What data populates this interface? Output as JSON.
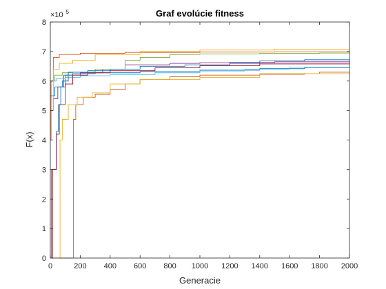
{
  "chart_data": {
    "type": "line",
    "title": "Graf evolúcie fitness",
    "xlabel": "Generacie",
    "ylabel": "F(x)",
    "xlim": [
      0,
      2000
    ],
    "ylim": [
      0,
      800000
    ],
    "x_ticks": [
      0,
      200,
      400,
      600,
      800,
      1000,
      1200,
      1400,
      1600,
      1800,
      2000
    ],
    "y_ticks": [
      0,
      100000,
      200000,
      300000,
      400000,
      500000,
      600000,
      700000,
      800000
    ],
    "y_tick_labels": [
      "0",
      "1",
      "2",
      "3",
      "4",
      "5",
      "6",
      "7",
      "8"
    ],
    "y_exponent": {
      "base": "×10",
      "power": "5"
    },
    "grid": false,
    "legend": "none",
    "series": [
      {
        "color": "#0072BD",
        "points": [
          [
            0,
            0
          ],
          [
            8,
            300000
          ],
          [
            30,
            300000
          ],
          [
            40,
            430000
          ],
          [
            55,
            520000
          ],
          [
            70,
            580000
          ],
          [
            90,
            620000
          ],
          [
            150,
            625000
          ],
          [
            300,
            628000
          ],
          [
            600,
            632000
          ],
          [
            1000,
            637000
          ],
          [
            1400,
            642000
          ],
          [
            1700,
            646000
          ],
          [
            2000,
            650000
          ]
        ]
      },
      {
        "color": "#D95319",
        "points": [
          [
            0,
            0
          ],
          [
            150,
            0
          ],
          [
            155,
            470000
          ],
          [
            170,
            520000
          ],
          [
            220,
            545000
          ],
          [
            300,
            555000
          ],
          [
            400,
            570000
          ],
          [
            500,
            590000
          ],
          [
            600,
            605000
          ],
          [
            800,
            615000
          ],
          [
            1000,
            620000
          ],
          [
            1400,
            623000
          ],
          [
            1700,
            625000
          ],
          [
            1800,
            630000
          ],
          [
            2000,
            630000
          ]
        ]
      },
      {
        "color": "#EDB120",
        "points": [
          [
            0,
            0
          ],
          [
            60,
            0
          ],
          [
            65,
            400000
          ],
          [
            80,
            470000
          ],
          [
            120,
            520000
          ],
          [
            180,
            545000
          ],
          [
            280,
            560000
          ],
          [
            400,
            590000
          ],
          [
            600,
            605000
          ],
          [
            1000,
            612000
          ],
          [
            1400,
            625000
          ],
          [
            2000,
            630000
          ]
        ]
      },
      {
        "color": "#7E2F8E",
        "points": [
          [
            0,
            500000
          ],
          [
            20,
            540000
          ],
          [
            50,
            580000
          ],
          [
            100,
            620000
          ],
          [
            200,
            628000
          ],
          [
            350,
            640000
          ],
          [
            500,
            655000
          ],
          [
            800,
            660000
          ],
          [
            1000,
            662000
          ],
          [
            1200,
            663000
          ],
          [
            1500,
            665000
          ],
          [
            2000,
            667000
          ]
        ]
      },
      {
        "color": "#77AC30",
        "points": [
          [
            0,
            600000
          ],
          [
            30,
            620000
          ],
          [
            80,
            628000
          ],
          [
            150,
            630000
          ],
          [
            300,
            640000
          ],
          [
            500,
            670000
          ],
          [
            600,
            680000
          ],
          [
            800,
            690000
          ],
          [
            1000,
            692000
          ],
          [
            1400,
            694000
          ],
          [
            1800,
            695000
          ],
          [
            2000,
            697000
          ]
        ]
      },
      {
        "color": "#4DBEEE",
        "points": [
          [
            0,
            600000
          ],
          [
            40,
            608000
          ],
          [
            100,
            612000
          ],
          [
            200,
            618000
          ],
          [
            400,
            622000
          ],
          [
            700,
            628000
          ],
          [
            1000,
            634000
          ],
          [
            1300,
            640000
          ],
          [
            1600,
            647000
          ],
          [
            2000,
            653000
          ]
        ]
      },
      {
        "color": "#A2142F",
        "points": [
          [
            0,
            0
          ],
          [
            15,
            300000
          ],
          [
            40,
            420000
          ],
          [
            60,
            520000
          ],
          [
            100,
            590000
          ],
          [
            150,
            620000
          ],
          [
            250,
            628000
          ],
          [
            400,
            635000
          ],
          [
            700,
            645000
          ],
          [
            1000,
            652000
          ],
          [
            1400,
            658000
          ],
          [
            2000,
            662000
          ]
        ]
      },
      {
        "color": "#D95319",
        "points": [
          [
            0,
            400000
          ],
          [
            5,
            600000
          ],
          [
            20,
            680000
          ],
          [
            60,
            690000
          ],
          [
            200,
            694000
          ],
          [
            500,
            697000
          ],
          [
            1000,
            698000
          ],
          [
            1500,
            699000
          ],
          [
            2000,
            700000
          ]
        ]
      },
      {
        "color": "#EDB120",
        "points": [
          [
            0,
            500000
          ],
          [
            20,
            640000
          ],
          [
            60,
            660000
          ],
          [
            150,
            670000
          ],
          [
            300,
            690000
          ],
          [
            600,
            700000
          ],
          [
            1000,
            705000
          ],
          [
            1500,
            708000
          ],
          [
            2000,
            712000
          ]
        ]
      },
      {
        "color": "#0072BD",
        "points": [
          [
            0,
            550000
          ],
          [
            30,
            580000
          ],
          [
            80,
            600000
          ],
          [
            120,
            630000
          ],
          [
            250,
            635000
          ],
          [
            400,
            640000
          ],
          [
            600,
            650000
          ],
          [
            900,
            655000
          ],
          [
            1200,
            660000
          ],
          [
            1400,
            668000
          ],
          [
            1700,
            672000
          ],
          [
            2000,
            675000
          ]
        ]
      }
    ]
  }
}
